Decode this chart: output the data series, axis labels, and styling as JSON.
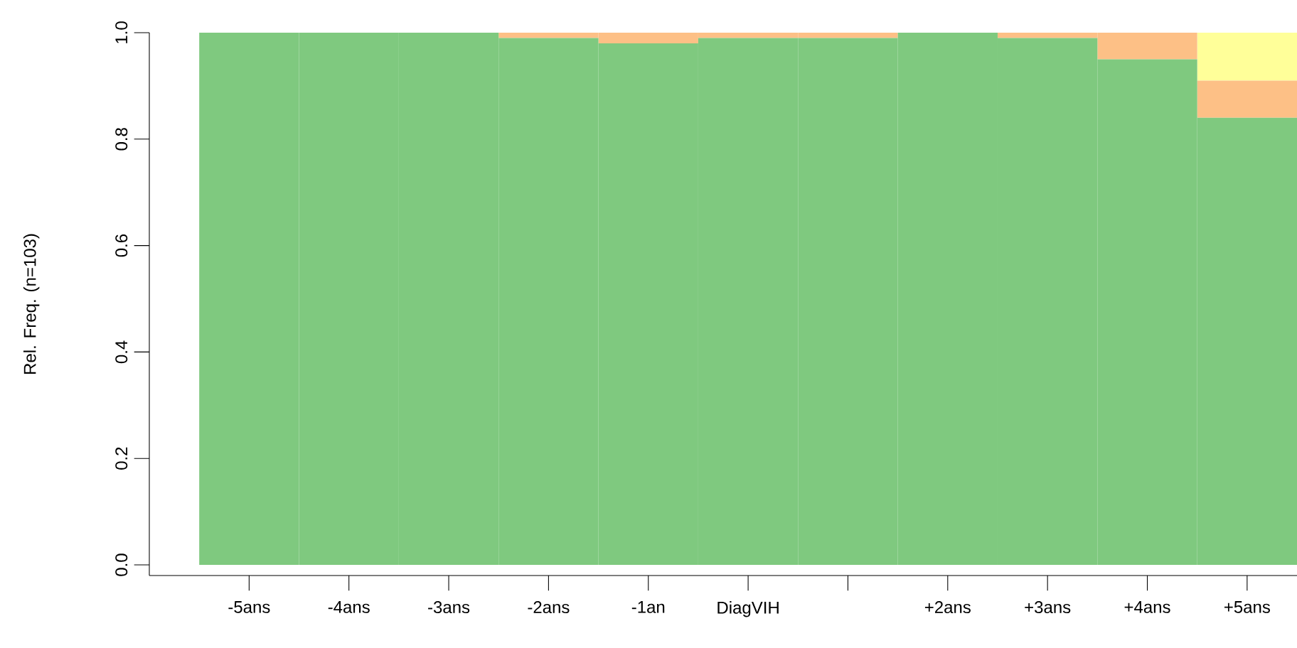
{
  "chart_data": {
    "type": "bar",
    "ylabel": "Rel. Freq. (n=103)",
    "stacked": true,
    "categories": [
      "-5ans",
      "-4ans",
      "-3ans",
      "-2ans",
      "-1an",
      "DiagVIH",
      null,
      "+2ans",
      "+3ans",
      "+4ans",
      "+5ans"
    ],
    "series": [
      {
        "color": "#7fc97f",
        "values": [
          1.0,
          1.0,
          1.0,
          0.99,
          0.98,
          0.99,
          0.99,
          1.0,
          0.99,
          0.95,
          0.84
        ]
      },
      {
        "color": "#fdc086",
        "values": [
          0,
          0,
          0,
          0.01,
          0.02,
          0.01,
          0.01,
          0,
          0.01,
          0.05,
          0.07
        ]
      },
      {
        "color": "#ffff99",
        "values": [
          0,
          0,
          0,
          0,
          0,
          0,
          0,
          0,
          0,
          0,
          0.09
        ]
      }
    ],
    "ylim": [
      0,
      1
    ],
    "yticks": [
      {
        "value": 0,
        "label": "0.0"
      },
      0.2,
      0.4,
      0.6,
      0.8,
      {
        "value": 1,
        "label": "1.0"
      }
    ]
  }
}
